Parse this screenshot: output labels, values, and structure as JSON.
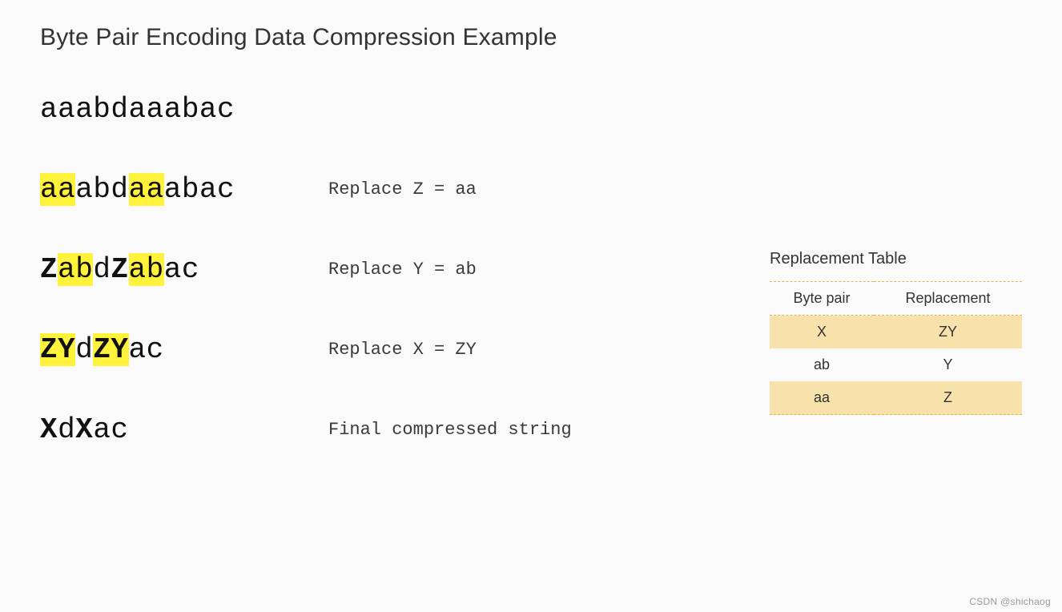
{
  "title": "Byte Pair Encoding Data Compression Example",
  "initial_string": {
    "segments": [
      {
        "text": "aaabdaaabac",
        "bold": false,
        "highlight": false
      }
    ]
  },
  "steps": [
    {
      "label": "Replace Z = aa",
      "segments": [
        {
          "text": "aa",
          "bold": false,
          "highlight": true
        },
        {
          "text": "abd",
          "bold": false,
          "highlight": false
        },
        {
          "text": "aa",
          "bold": false,
          "highlight": true
        },
        {
          "text": "abac",
          "bold": false,
          "highlight": false
        }
      ]
    },
    {
      "label": "Replace Y = ab",
      "segments": [
        {
          "text": "Z",
          "bold": true,
          "highlight": false
        },
        {
          "text": "ab",
          "bold": false,
          "highlight": true
        },
        {
          "text": "d",
          "bold": false,
          "highlight": false
        },
        {
          "text": "Z",
          "bold": true,
          "highlight": false
        },
        {
          "text": "ab",
          "bold": false,
          "highlight": true
        },
        {
          "text": "ac",
          "bold": false,
          "highlight": false
        }
      ]
    },
    {
      "label": "Replace X = ZY",
      "segments": [
        {
          "text": "ZY",
          "bold": true,
          "highlight": true
        },
        {
          "text": "d",
          "bold": false,
          "highlight": false
        },
        {
          "text": "ZY",
          "bold": true,
          "highlight": true
        },
        {
          "text": "ac",
          "bold": false,
          "highlight": false
        }
      ]
    },
    {
      "label": "Final compressed string",
      "segments": [
        {
          "text": "X",
          "bold": true,
          "highlight": false
        },
        {
          "text": "d",
          "bold": false,
          "highlight": false
        },
        {
          "text": "X",
          "bold": true,
          "highlight": false
        },
        {
          "text": "ac",
          "bold": false,
          "highlight": false
        }
      ]
    }
  ],
  "table": {
    "title": "Replacement Table",
    "columns": [
      "Byte pair",
      "Replacement"
    ],
    "rows": [
      {
        "pair": "X",
        "replacement": "ZY",
        "alt": true
      },
      {
        "pair": "ab",
        "replacement": "Y",
        "alt": false
      },
      {
        "pair": "aa",
        "replacement": "Z",
        "alt": true
      }
    ],
    "style": {
      "header_border_color": "#e3b84f",
      "border_style": "dashed",
      "alt_row_bg": "#f7e2ab",
      "font_size": 18
    }
  },
  "style": {
    "background_color": "#fafafa",
    "title_font_size": 30,
    "string_font_family": "Courier New",
    "string_font_size": 36,
    "label_font_size": 22,
    "highlight_color": "#fff23a",
    "text_color": "#333333",
    "row_gap": 56
  },
  "watermark": "CSDN @shichaog"
}
